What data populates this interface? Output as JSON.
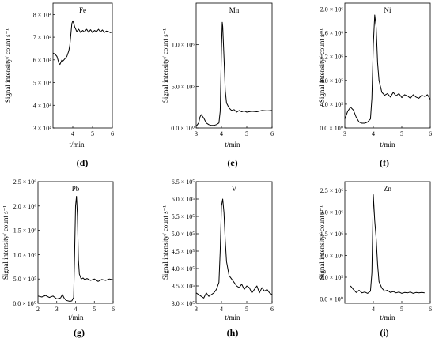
{
  "chart_data": [
    {
      "type": "line",
      "panel_label": "(d)",
      "title": "Fe",
      "xlabel": "t/min",
      "ylabel": "Signal intensity/ count s⁻¹",
      "xlim": [
        3,
        6
      ],
      "ylim": [
        30000,
        85000
      ],
      "xticks": [
        4,
        5,
        6
      ],
      "xtick_labels": [
        "4",
        "5",
        "6"
      ],
      "yticks": [
        30000,
        40000,
        50000,
        60000,
        70000,
        80000
      ],
      "ytick_labels": [
        "3 × 10⁴",
        "4 × 10⁴",
        "5 × 10⁴",
        "6 × 10⁴",
        "7 × 10⁴",
        "8 × 10⁴"
      ],
      "series": [
        {
          "x": [
            3.0,
            3.1,
            3.2,
            3.3,
            3.35,
            3.45,
            3.5,
            3.6,
            3.7,
            3.8,
            3.85,
            3.9,
            3.95,
            4.0,
            4.05,
            4.1,
            4.2,
            4.3,
            4.4,
            4.5,
            4.6,
            4.7,
            4.8,
            4.9,
            5.0,
            5.1,
            5.2,
            5.3,
            5.4,
            5.5,
            5.6,
            5.7,
            5.8,
            5.9,
            6.0
          ],
          "y": [
            63000,
            62500,
            61500,
            58500,
            58000,
            60000,
            59500,
            60500,
            61500,
            64000,
            66500,
            71000,
            76000,
            77200,
            76000,
            74500,
            72500,
            73500,
            72000,
            73000,
            72300,
            73500,
            72200,
            73300,
            72000,
            73000,
            72400,
            73500,
            72300,
            73200,
            72100,
            72700,
            72500,
            72000,
            72300
          ]
        }
      ]
    },
    {
      "type": "line",
      "panel_label": "(e)",
      "title": "Mn",
      "xlabel": "t/min",
      "ylabel": "Signal intensity/ count s⁻¹",
      "xlim": [
        3,
        6
      ],
      "ylim": [
        0,
        1500000
      ],
      "xticks": [
        3,
        4,
        5,
        6
      ],
      "xtick_labels": [
        "3",
        "4",
        "5",
        "6"
      ],
      "yticks": [
        0,
        500000,
        1000000
      ],
      "ytick_labels": [
        "0.0 × 10⁰",
        "5.0 × 10⁵",
        "1.0 × 10⁶"
      ],
      "series": [
        {
          "x": [
            3.0,
            3.1,
            3.15,
            3.2,
            3.3,
            3.4,
            3.5,
            3.6,
            3.7,
            3.8,
            3.9,
            3.95,
            4.0,
            4.03,
            4.05,
            4.1,
            4.15,
            4.2,
            4.3,
            4.4,
            4.5,
            4.6,
            4.7,
            4.8,
            4.9,
            5.0,
            5.2,
            5.4,
            5.6,
            5.8,
            6.0
          ],
          "y": [
            20000,
            60000,
            130000,
            160000,
            120000,
            60000,
            40000,
            30000,
            30000,
            40000,
            60000,
            200000,
            950000,
            1270000,
            1220000,
            850000,
            450000,
            300000,
            240000,
            210000,
            220000,
            190000,
            210000,
            195000,
            205000,
            190000,
            200000,
            195000,
            210000,
            205000,
            210000
          ]
        }
      ]
    },
    {
      "type": "line",
      "panel_label": "(f)",
      "title": "Ni",
      "xlabel": "t/min",
      "ylabel": "Signal intensity/ count s⁻¹",
      "xlim": [
        3,
        6
      ],
      "ylim": [
        0,
        2100000
      ],
      "xticks": [
        3,
        4,
        5,
        6
      ],
      "xtick_labels": [
        "3",
        "4",
        "5",
        "6"
      ],
      "yticks": [
        0,
        400000,
        800000,
        1200000,
        1600000,
        2000000
      ],
      "ytick_labels": [
        "0.0 × 10⁰",
        "4.0 × 10⁵",
        "8.0 × 10⁵",
        "1.2 × 10⁶",
        "1.6 × 10⁶",
        "2.0 × 10⁶"
      ],
      "series": [
        {
          "x": [
            3.0,
            3.1,
            3.2,
            3.3,
            3.4,
            3.5,
            3.6,
            3.7,
            3.8,
            3.9,
            3.95,
            4.0,
            4.05,
            4.1,
            4.15,
            4.2,
            4.3,
            4.4,
            4.5,
            4.6,
            4.7,
            4.8,
            4.9,
            5.0,
            5.1,
            5.2,
            5.3,
            5.4,
            5.5,
            5.6,
            5.7,
            5.8,
            5.9,
            6.0
          ],
          "y": [
            150000,
            280000,
            350000,
            300000,
            180000,
            100000,
            80000,
            80000,
            100000,
            150000,
            500000,
            1400000,
            1900000,
            1700000,
            1100000,
            800000,
            600000,
            550000,
            580000,
            520000,
            600000,
            540000,
            580000,
            510000,
            560000,
            540000,
            500000,
            560000,
            520000,
            500000,
            550000,
            530000,
            560000,
            480000
          ]
        }
      ]
    },
    {
      "type": "line",
      "panel_label": "(g)",
      "title": "Pb",
      "xlabel": "t/min",
      "ylabel": "Signal intensity/ count s⁻¹",
      "xlim": [
        2,
        6
      ],
      "ylim": [
        0,
        2500000
      ],
      "xticks": [
        2,
        3,
        4,
        5,
        6
      ],
      "xtick_labels": [
        "2",
        "3",
        "4",
        "5",
        "6"
      ],
      "yticks": [
        0,
        500000,
        1000000,
        1500000,
        2000000,
        2500000
      ],
      "ytick_labels": [
        "0.0 × 10⁰",
        "5.0 × 10⁵",
        "1.0 × 10⁶",
        "1.5 × 10⁶",
        "2.0 × 10⁶",
        "2.5 × 10⁶"
      ],
      "series": [
        {
          "x": [
            2.0,
            2.2,
            2.4,
            2.6,
            2.8,
            3.0,
            3.2,
            3.3,
            3.4,
            3.5,
            3.7,
            3.8,
            3.9,
            3.95,
            4.0,
            4.05,
            4.1,
            4.15,
            4.2,
            4.3,
            4.4,
            4.5,
            4.6,
            4.8,
            5.0,
            5.2,
            5.4,
            5.6,
            5.8,
            6.0
          ],
          "y": [
            150000,
            130000,
            160000,
            120000,
            150000,
            90000,
            110000,
            180000,
            100000,
            60000,
            40000,
            50000,
            120000,
            1000000,
            2000000,
            2200000,
            1800000,
            900000,
            600000,
            500000,
            520000,
            480000,
            510000,
            470000,
            500000,
            450000,
            490000,
            470000,
            500000,
            480000
          ]
        }
      ]
    },
    {
      "type": "line",
      "panel_label": "(h)",
      "title": "V",
      "xlabel": "t/min",
      "ylabel": "Signal intensity/ count s⁻¹",
      "xlim": [
        3,
        6
      ],
      "ylim": [
        300000,
        650000
      ],
      "xticks": [
        3,
        4,
        5,
        6
      ],
      "xtick_labels": [
        "3",
        "4",
        "5",
        "6"
      ],
      "yticks": [
        300000,
        350000,
        400000,
        450000,
        500000,
        550000,
        600000,
        650000
      ],
      "ytick_labels": [
        "3.0 × 10⁵",
        "3.5 × 10⁵",
        "4.0 × 10⁵",
        "4.5 × 10⁵",
        "5.0 × 10⁵",
        "5.5 × 10⁵",
        "6.0 × 10⁵",
        "6.5 × 10⁵"
      ],
      "series": [
        {
          "x": [
            3.0,
            3.1,
            3.2,
            3.3,
            3.4,
            3.5,
            3.6,
            3.7,
            3.8,
            3.9,
            3.95,
            4.0,
            4.05,
            4.1,
            4.15,
            4.2,
            4.3,
            4.4,
            4.5,
            4.6,
            4.7,
            4.8,
            4.9,
            5.0,
            5.1,
            5.2,
            5.3,
            5.4,
            5.5,
            5.6,
            5.7,
            5.8,
            5.9,
            6.0
          ],
          "y": [
            330000,
            325000,
            320000,
            315000,
            330000,
            320000,
            325000,
            330000,
            340000,
            360000,
            450000,
            580000,
            600000,
            560000,
            480000,
            420000,
            380000,
            370000,
            360000,
            350000,
            345000,
            355000,
            340000,
            350000,
            345000,
            330000,
            340000,
            350000,
            330000,
            345000,
            335000,
            340000,
            330000,
            325000
          ]
        }
      ]
    },
    {
      "type": "line",
      "panel_label": "(i)",
      "title": "Zn",
      "xlabel": "t/min",
      "ylabel": "Signal intensity/ count s⁻¹",
      "xlim": [
        3,
        6
      ],
      "ylim": [
        -100000,
        2700000
      ],
      "xticks": [
        4,
        5,
        6
      ],
      "xtick_labels": [
        "4",
        "5",
        "6"
      ],
      "yticks": [
        0,
        500000,
        1000000,
        1500000,
        2000000,
        2500000
      ],
      "ytick_labels": [
        "0.0 × 10⁰",
        "5.0 × 10⁵",
        "1.0 × 10⁶",
        "1.5 × 10⁶",
        "2.0 × 10⁶",
        "2.5 × 10⁶"
      ],
      "series": [
        {
          "x": [
            3.2,
            3.3,
            3.4,
            3.5,
            3.6,
            3.7,
            3.8,
            3.9,
            3.95,
            4.0,
            4.05,
            4.1,
            4.15,
            4.2,
            4.3,
            4.4,
            4.5,
            4.6,
            4.7,
            4.8,
            4.9,
            5.0,
            5.1,
            5.2,
            5.3,
            5.4,
            5.5,
            5.6,
            5.7,
            5.8
          ],
          "y": [
            300000,
            220000,
            150000,
            200000,
            140000,
            160000,
            130000,
            180000,
            600000,
            2400000,
            1800000,
            1400000,
            800000,
            400000,
            250000,
            180000,
            200000,
            150000,
            170000,
            140000,
            160000,
            130000,
            150000,
            140000,
            160000,
            130000,
            150000,
            140000,
            150000,
            140000
          ]
        }
      ]
    }
  ]
}
